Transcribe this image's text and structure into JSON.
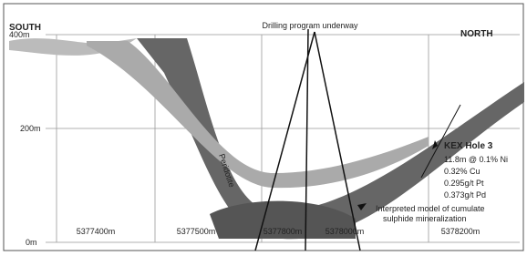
{
  "header": {
    "title": "Drilling program underway",
    "south": "SOUTH",
    "north": "NORTH"
  },
  "axes": {
    "y_labels": [
      "400m",
      "200m",
      "0m"
    ],
    "x_labels": [
      "5377400m",
      "5377500m",
      "5377800m",
      "5378000m",
      "5378200m"
    ]
  },
  "rock_label": "Peridotite",
  "hole": {
    "name": "KEX Hole 3",
    "lines": [
      "11.8m @ 0.1% Ni",
      "0.32% Cu",
      "0.295g/t Pt",
      "0.373g/t Pd"
    ]
  },
  "model_note": {
    "lines": [
      "Interpreted model of cumulate",
      "sulphide mineralization"
    ]
  }
}
